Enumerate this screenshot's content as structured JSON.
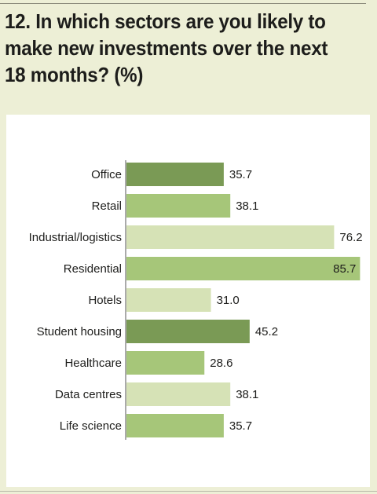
{
  "title": "12. In which sectors are you likely to make new investments over the next 18 months? (%)",
  "colors": {
    "dark_green": "#7a9a55",
    "mid_green": "#a6c679",
    "light_green": "#d6e2b6",
    "background": "#edefd6"
  },
  "chart_data": {
    "type": "bar",
    "orientation": "horizontal",
    "title": "12. In which sectors are you likely to make new investments over the next 18 months? (%)",
    "xlabel": "",
    "ylabel": "",
    "xlim": [
      0,
      100
    ],
    "grid": false,
    "legend": "none",
    "categories": [
      "Office",
      "Retail",
      "Industrial/logistics",
      "Residential",
      "Hotels",
      "Student housing",
      "Healthcare",
      "Data centres",
      "Life science"
    ],
    "values": [
      35.7,
      38.1,
      76.2,
      85.7,
      31.0,
      45.2,
      28.6,
      38.1,
      35.7
    ],
    "value_labels": [
      "35.7",
      "38.1",
      "76.2",
      "85.7",
      "31.0",
      "45.2",
      "28.6",
      "38.1",
      "35.7"
    ],
    "bar_colors": [
      "dark_green",
      "mid_green",
      "light_green",
      "mid_green",
      "light_green",
      "dark_green",
      "mid_green",
      "light_green",
      "mid_green"
    ]
  }
}
